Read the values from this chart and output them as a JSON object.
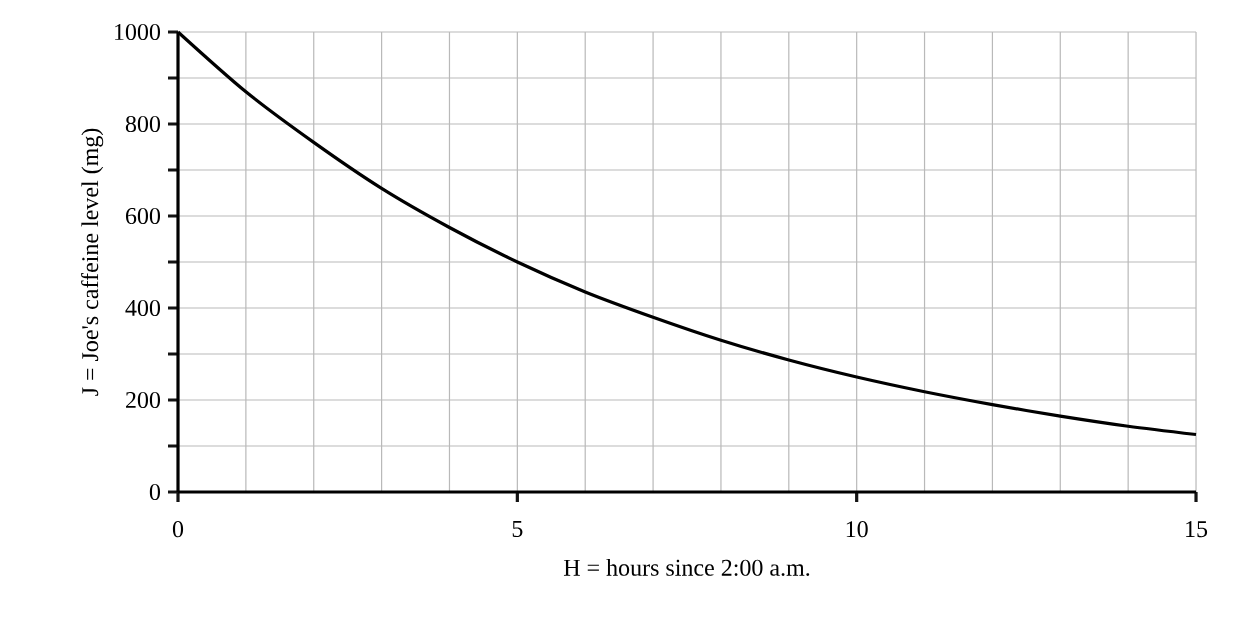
{
  "chart_data": {
    "type": "line",
    "xlabel": "H = hours since 2:00 a.m.",
    "ylabel": "J = Joe's caffeine level (mg)",
    "x": [
      0,
      1,
      2,
      3,
      4,
      5,
      6,
      7,
      8,
      9,
      10,
      11,
      12,
      13,
      14,
      15
    ],
    "series": [
      {
        "color": "#000000",
        "values": [
          1000,
          870,
          760,
          660,
          575,
          500,
          435,
          380,
          330,
          287,
          250,
          218,
          190,
          165,
          143,
          125
        ]
      }
    ],
    "xlim": [
      0,
      15
    ],
    "ylim": [
      0,
      1000
    ],
    "xticks": [
      0,
      {
        "value": 1,
        "label": null
      },
      {
        "value": 2,
        "label": null
      },
      {
        "value": 3,
        "label": null
      },
      {
        "value": 4,
        "label": null
      },
      5,
      {
        "value": 6,
        "label": null
      },
      {
        "value": 7,
        "label": null
      },
      {
        "value": 8,
        "label": null
      },
      {
        "value": 9,
        "label": null
      },
      10,
      {
        "value": 11,
        "label": null
      },
      {
        "value": 12,
        "label": null
      },
      {
        "value": 13,
        "label": null
      },
      {
        "value": 14,
        "label": null
      },
      15
    ],
    "yticks": [
      0,
      {
        "value": 100,
        "label": null
      },
      200,
      {
        "value": 300,
        "label": null
      },
      400,
      {
        "value": 500,
        "label": null
      },
      600,
      {
        "value": 700,
        "label": null
      },
      800,
      {
        "value": 900,
        "label": null
      },
      1000
    ],
    "grid": true,
    "marker": "none",
    "line_style": "solid"
  }
}
